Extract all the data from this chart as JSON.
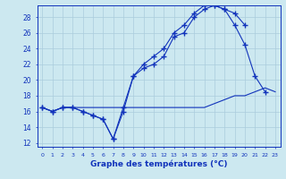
{
  "xlabel": "Graphe des températures (°C)",
  "bg_color": "#cce8f0",
  "grid_color": "#aaccdd",
  "line_color": "#1133bb",
  "xlim": [
    -0.5,
    23.5
  ],
  "ylim": [
    11.5,
    29.5
  ],
  "yticks": [
    12,
    14,
    16,
    18,
    20,
    22,
    24,
    26,
    28
  ],
  "xticks": [
    0,
    1,
    2,
    3,
    4,
    5,
    6,
    7,
    8,
    9,
    10,
    11,
    12,
    13,
    14,
    15,
    16,
    17,
    18,
    19,
    20,
    21,
    22,
    23
  ],
  "hours": [
    0,
    1,
    2,
    3,
    4,
    5,
    6,
    7,
    8,
    9,
    10,
    11,
    12,
    13,
    14,
    15,
    16,
    17,
    18,
    19,
    20,
    21,
    22,
    23
  ],
  "line1": [
    16.5,
    16.0,
    16.5,
    16.5,
    16.0,
    15.5,
    15.0,
    12.5,
    16.0,
    20.5,
    21.5,
    22.0,
    23.0,
    25.5,
    26.0,
    28.0,
    29.0,
    29.5,
    29.0,
    27.0,
    24.5,
    20.5,
    18.5,
    null
  ],
  "line2": [
    16.5,
    16.0,
    16.5,
    16.5,
    16.0,
    15.5,
    15.0,
    12.5,
    16.5,
    20.5,
    22.0,
    23.0,
    24.0,
    26.0,
    27.0,
    28.5,
    29.5,
    29.5,
    29.0,
    28.5,
    27.0,
    null,
    null,
    null
  ],
  "line3": [
    16.5,
    16.0,
    16.5,
    16.5,
    16.5,
    16.5,
    16.5,
    16.5,
    16.5,
    16.5,
    16.5,
    16.5,
    16.5,
    16.5,
    16.5,
    16.5,
    16.5,
    17.0,
    17.5,
    18.0,
    18.0,
    18.5,
    19.0,
    18.5
  ]
}
